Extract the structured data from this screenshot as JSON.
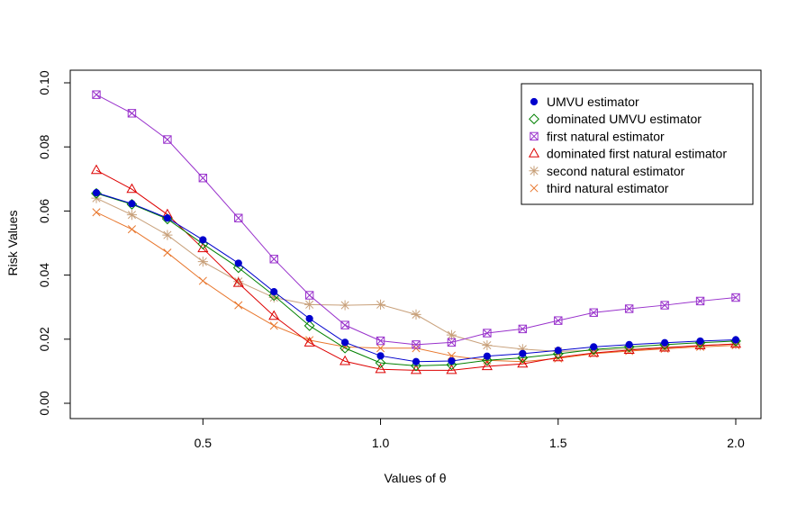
{
  "chart_data": {
    "type": "line",
    "title": "",
    "xlabel": "Values of θ",
    "ylabel": "Risk Values",
    "xlim": [
      0.2,
      2.0
    ],
    "ylim": [
      0.0,
      0.1
    ],
    "x_ticks": [
      "0.5",
      "1.0",
      "1.5",
      "2.0"
    ],
    "y_ticks": [
      "0.00",
      "0.02",
      "0.04",
      "0.06",
      "0.08",
      "0.10"
    ],
    "grid": false,
    "legend_position": "top-right",
    "x": [
      0.2,
      0.3,
      0.4,
      0.5,
      0.6,
      0.7,
      0.8,
      0.9,
      1.0,
      1.1,
      1.2,
      1.3,
      1.4,
      1.5,
      1.6,
      1.7,
      1.8,
      1.9,
      2.0
    ],
    "series": [
      {
        "name": "UMVU estimator",
        "color": "#0000CD",
        "marker": "filled-circle",
        "values": [
          0.0657,
          0.0623,
          0.0578,
          0.051,
          0.0437,
          0.0348,
          0.0264,
          0.019,
          0.0148,
          0.013,
          0.0132,
          0.0147,
          0.0155,
          0.0165,
          0.0176,
          0.0183,
          0.0189,
          0.0194,
          0.0198
        ]
      },
      {
        "name": "dominated UMVU estimator",
        "color": "#008000",
        "marker": "diamond",
        "values": [
          0.0655,
          0.0621,
          0.0575,
          0.0497,
          0.0423,
          0.0336,
          0.0242,
          0.0172,
          0.0126,
          0.0117,
          0.012,
          0.0134,
          0.0142,
          0.0154,
          0.0168,
          0.0176,
          0.0183,
          0.0189,
          0.0194
        ]
      },
      {
        "name": "first natural estimator",
        "color": "#9932CC",
        "marker": "square-x",
        "values": [
          0.0963,
          0.0905,
          0.0823,
          0.0703,
          0.0578,
          0.045,
          0.0337,
          0.0244,
          0.0195,
          0.0183,
          0.019,
          0.0219,
          0.0232,
          0.0258,
          0.0283,
          0.0295,
          0.0306,
          0.0319,
          0.033
        ]
      },
      {
        "name": "dominated first natural estimator",
        "color": "#DD0000",
        "marker": "triangle",
        "values": [
          0.0727,
          0.0668,
          0.0589,
          0.0483,
          0.0375,
          0.0272,
          0.0189,
          0.0131,
          0.0106,
          0.0103,
          0.0103,
          0.0115,
          0.0123,
          0.0143,
          0.0157,
          0.0166,
          0.0173,
          0.018,
          0.0185
        ]
      },
      {
        "name": "second natural estimator",
        "color": "#C8A07A",
        "marker": "asterisk",
        "values": [
          0.064,
          0.0588,
          0.0525,
          0.0442,
          0.038,
          0.033,
          0.0308,
          0.0306,
          0.0308,
          0.0277,
          0.0213,
          0.0181,
          0.0169,
          0.0162,
          0.0165,
          0.017,
          0.0175,
          0.018,
          0.0185
        ]
      },
      {
        "name": "third natural estimator",
        "color": "#E8762C",
        "marker": "cross",
        "values": [
          0.0596,
          0.0543,
          0.047,
          0.0382,
          0.0306,
          0.0242,
          0.0197,
          0.0176,
          0.0172,
          0.0172,
          0.0148,
          0.0134,
          0.013,
          0.014,
          0.0155,
          0.0163,
          0.017,
          0.0176,
          0.0181
        ]
      }
    ]
  }
}
